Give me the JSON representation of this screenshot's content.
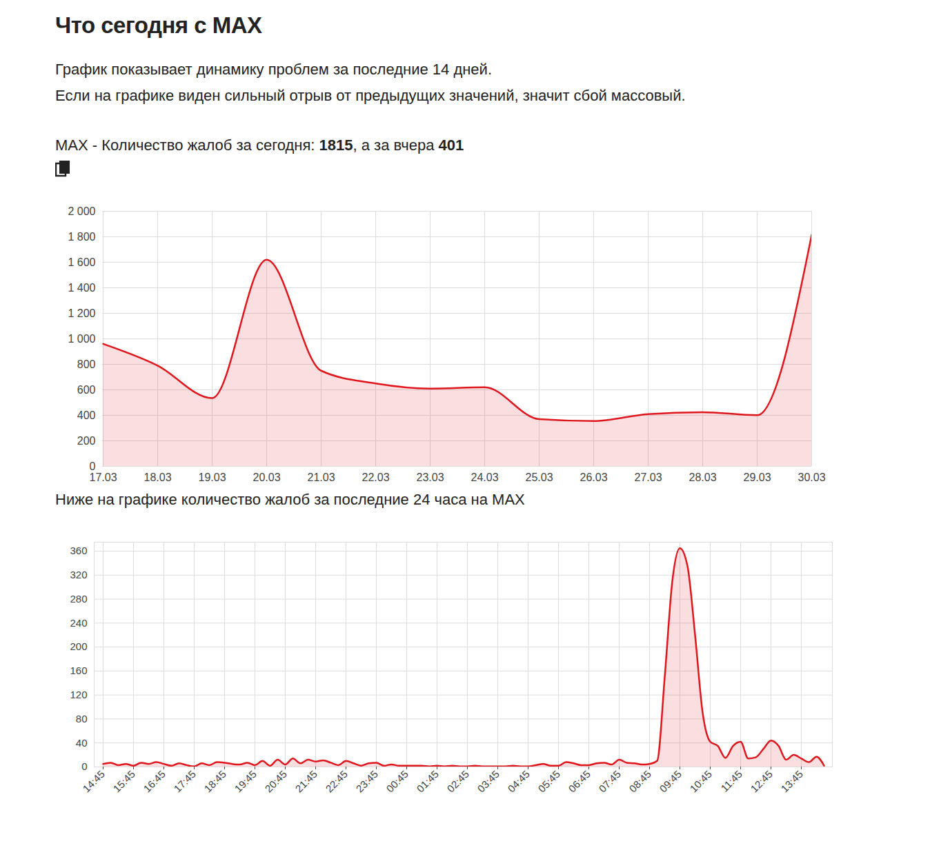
{
  "header": {
    "title": "Что сегодня с MAX",
    "paragraphs": [
      "График показывает динамику проблем за последние 14 дней.",
      "Если на графике виден сильный отрыв от предыдущих значений, значит сбой массовый."
    ],
    "summary": {
      "label": "MAX - Количество жалоб за сегодня:",
      "today": 1815,
      "between": ", а за вчера",
      "yesterday": 401
    }
  },
  "chart_data": [
    {
      "type": "area",
      "categories": [
        "17.03",
        "18.03",
        "19.03",
        "20.03",
        "21.03",
        "22.03",
        "23.03",
        "24.03",
        "25.03",
        "26.03",
        "27.03",
        "28.03",
        "29.03",
        "30.03"
      ],
      "values": [
        960,
        790,
        535,
        1620,
        750,
        650,
        610,
        620,
        370,
        355,
        410,
        425,
        401,
        1815
      ],
      "color": "#e0161d",
      "ylim": [
        0,
        2000
      ],
      "yticks": [
        0,
        200,
        400,
        600,
        800,
        {
          "value": 1000,
          "label": "1 000"
        },
        {
          "value": 1200,
          "label": "1 200"
        },
        {
          "value": 1400,
          "label": "1 400"
        },
        {
          "value": 1600,
          "label": "1 600"
        },
        {
          "value": 1800,
          "label": "1 800"
        },
        {
          "value": 2000,
          "label": "2 000"
        }
      ],
      "grid": true
    },
    {
      "type": "area",
      "title": "Ниже на графике количество жалоб за последние 24 часа на MAX",
      "categories": [
        "14:45",
        null,
        null,
        null,
        "15:45",
        null,
        null,
        null,
        "16:45",
        null,
        null,
        null,
        "17:45",
        null,
        null,
        null,
        "18:45",
        null,
        null,
        null,
        "19:45",
        null,
        null,
        null,
        "20:45",
        null,
        null,
        null,
        "21:45",
        null,
        null,
        null,
        "22:45",
        null,
        null,
        null,
        "23:45",
        null,
        null,
        null,
        "00:45",
        null,
        null,
        null,
        "01:45",
        null,
        null,
        null,
        "02:45",
        null,
        null,
        null,
        "03:45",
        null,
        null,
        null,
        "04:45",
        null,
        null,
        null,
        "05:45",
        null,
        null,
        null,
        "06:45",
        null,
        null,
        null,
        "07:45",
        null,
        null,
        null,
        "08:45",
        null,
        null,
        null,
        "09:45",
        null,
        null,
        null,
        "10:45",
        null,
        null,
        null,
        "11:45",
        null,
        null,
        null,
        "12:45",
        null,
        null,
        null,
        "13:45",
        null,
        null,
        null
      ],
      "values": [
        5,
        7,
        3,
        5,
        2,
        7,
        5,
        8,
        5,
        2,
        6,
        3,
        1,
        6,
        3,
        8,
        7,
        5,
        4,
        7,
        3,
        10,
        2,
        12,
        4,
        14,
        6,
        12,
        9,
        11,
        7,
        3,
        10,
        6,
        2,
        6,
        7,
        2,
        4,
        2,
        2,
        2,
        2,
        1,
        2,
        1,
        2,
        1,
        1,
        2,
        1,
        1,
        1,
        1,
        2,
        1,
        1,
        3,
        5,
        2,
        2,
        8,
        6,
        3,
        3,
        6,
        7,
        4,
        12,
        7,
        6,
        4,
        5,
        10,
        150,
        310,
        365,
        335,
        220,
        90,
        42,
        35,
        15,
        35,
        42,
        14,
        16,
        30,
        44,
        35,
        12,
        20,
        14,
        8,
        17,
        2
      ],
      "color": "#e0161d",
      "ylim": [
        0,
        375
      ],
      "yticks": [
        0,
        40,
        80,
        120,
        160,
        200,
        240,
        280,
        320,
        360
      ],
      "grid": true
    }
  ]
}
